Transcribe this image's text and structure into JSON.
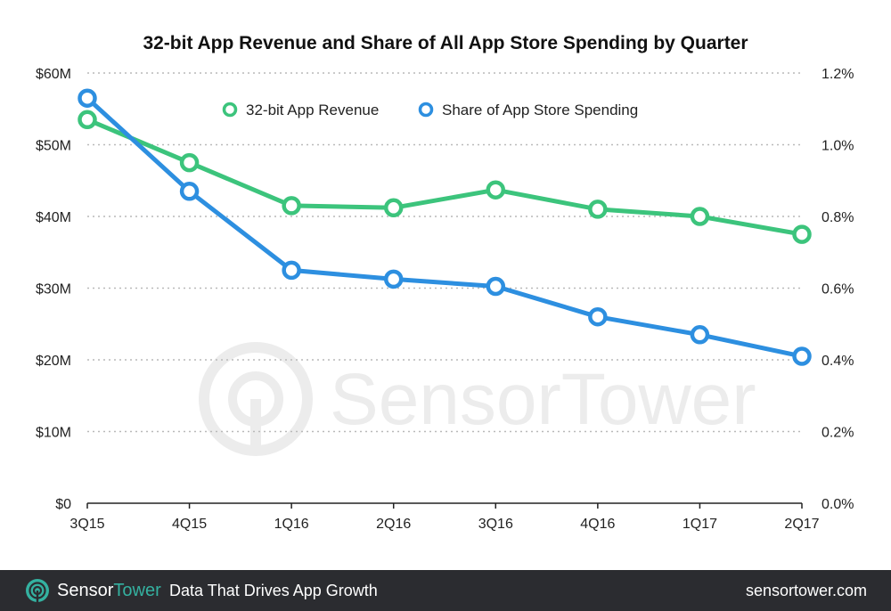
{
  "chart_data": {
    "type": "line",
    "title": "32-bit App Revenue and Share of All App Store Spending by Quarter",
    "categories": [
      "3Q15",
      "4Q15",
      "1Q16",
      "2Q16",
      "3Q16",
      "4Q16",
      "1Q17",
      "2Q17"
    ],
    "y_left": {
      "ylim": [
        0,
        60
      ],
      "ticks": [
        0,
        10,
        20,
        30,
        40,
        50,
        60
      ],
      "tick_labels": [
        "$0",
        "$10M",
        "$20M",
        "$30M",
        "$40M",
        "$50M",
        "$60M"
      ]
    },
    "y_right": {
      "ylim": [
        0,
        1.2
      ],
      "ticks": [
        0,
        0.2,
        0.4,
        0.6,
        0.8,
        1.0,
        1.2
      ],
      "tick_labels": [
        "0.0%",
        "0.2%",
        "0.4%",
        "0.6%",
        "0.8%",
        "1.0%",
        "1.2%"
      ]
    },
    "series": [
      {
        "name": "32-bit App Revenue",
        "axis": "left",
        "color": "#3cc47c",
        "values": [
          53.5,
          47.5,
          41.5,
          41.2,
          43.7,
          41.0,
          40.0,
          37.5
        ]
      },
      {
        "name": "Share of App Store Spending",
        "axis": "right",
        "color": "#2d8fe0",
        "values": [
          1.13,
          0.87,
          0.65,
          0.625,
          0.605,
          0.52,
          0.47,
          0.41
        ]
      }
    ],
    "grid": true,
    "legend_position": "top-center",
    "watermark": "SensorTower"
  },
  "footer": {
    "brand_part1": "Sensor",
    "brand_part2": "Tower",
    "tagline": "Data That Drives App Growth",
    "site": "sensortower.com"
  }
}
